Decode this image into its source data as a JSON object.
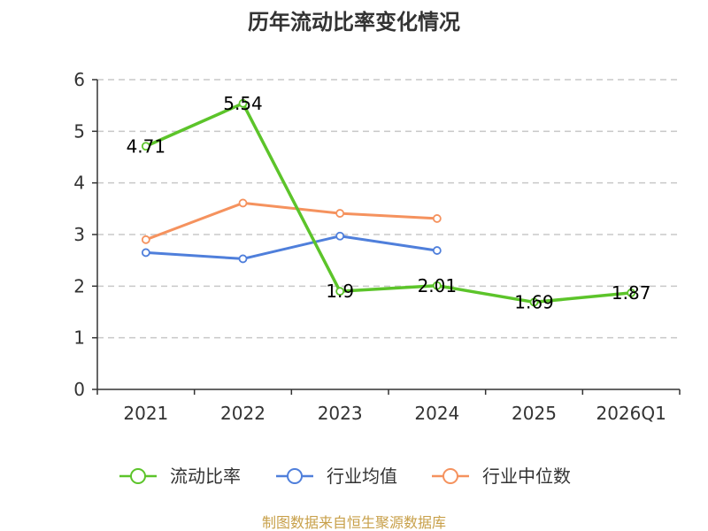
{
  "chart_data": {
    "type": "line",
    "title": "历年流动比率变化情况",
    "categories": [
      "2021",
      "2022",
      "2023",
      "2024",
      "2025",
      "2026Q1"
    ],
    "ylim": [
      0,
      6
    ],
    "yticks": [
      "0",
      "1",
      "2",
      "3",
      "4",
      "5",
      "6"
    ],
    "grid": true,
    "legend_position": "bottom",
    "series": [
      {
        "name": "流动比率",
        "color": "#5cc42a",
        "values": [
          4.71,
          5.54,
          1.9,
          2.01,
          1.69,
          1.87
        ],
        "labels": [
          "4.71",
          "5.54",
          "1.9",
          "2.01",
          "1.69",
          "1.87"
        ]
      },
      {
        "name": "行业均值",
        "color": "#4f7fdb",
        "values": [
          2.65,
          2.53,
          2.97,
          2.69,
          null,
          null
        ]
      },
      {
        "name": "行业中位数",
        "color": "#f5925e",
        "values": [
          2.9,
          3.61,
          3.41,
          3.31,
          null,
          null
        ]
      }
    ],
    "source": "制图数据来自恒生聚源数据库"
  }
}
